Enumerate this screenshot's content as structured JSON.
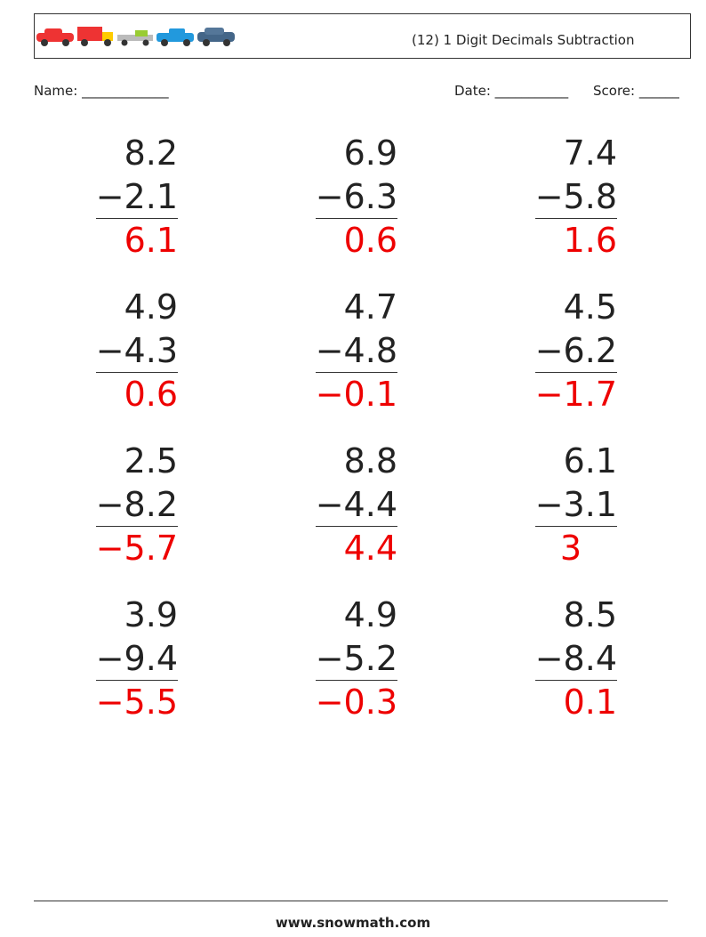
{
  "header": {
    "title": "(12) 1 Digit Decimals Subtraction"
  },
  "labels": {
    "name": "Name: _____________",
    "date": "Date: ___________",
    "score": "Score: ______"
  },
  "problems": [
    {
      "top": "8.2",
      "bottom": "−2.1",
      "answer": "6.1"
    },
    {
      "top": "6.9",
      "bottom": "−6.3",
      "answer": "0.6"
    },
    {
      "top": "7.4",
      "bottom": "−5.8",
      "answer": "1.6"
    },
    {
      "top": "4.9",
      "bottom": "−4.3",
      "answer": "0.6"
    },
    {
      "top": "4.7",
      "bottom": "−4.8",
      "answer": "−0.1"
    },
    {
      "top": "4.5",
      "bottom": "−6.2",
      "answer": "−1.7"
    },
    {
      "top": "2.5",
      "bottom": "−8.2",
      "answer": "−5.7"
    },
    {
      "top": "8.8",
      "bottom": "−4.4",
      "answer": "4.4"
    },
    {
      "top": "6.1",
      "bottom": "−3.1",
      "answer": "3"
    },
    {
      "top": "3.9",
      "bottom": "−9.4",
      "answer": "−5.5"
    },
    {
      "top": "4.9",
      "bottom": "−5.2",
      "answer": "−0.3"
    },
    {
      "top": "8.5",
      "bottom": "−8.4",
      "answer": "0.1"
    }
  ],
  "footer": {
    "text": "www.snowmath.com"
  }
}
